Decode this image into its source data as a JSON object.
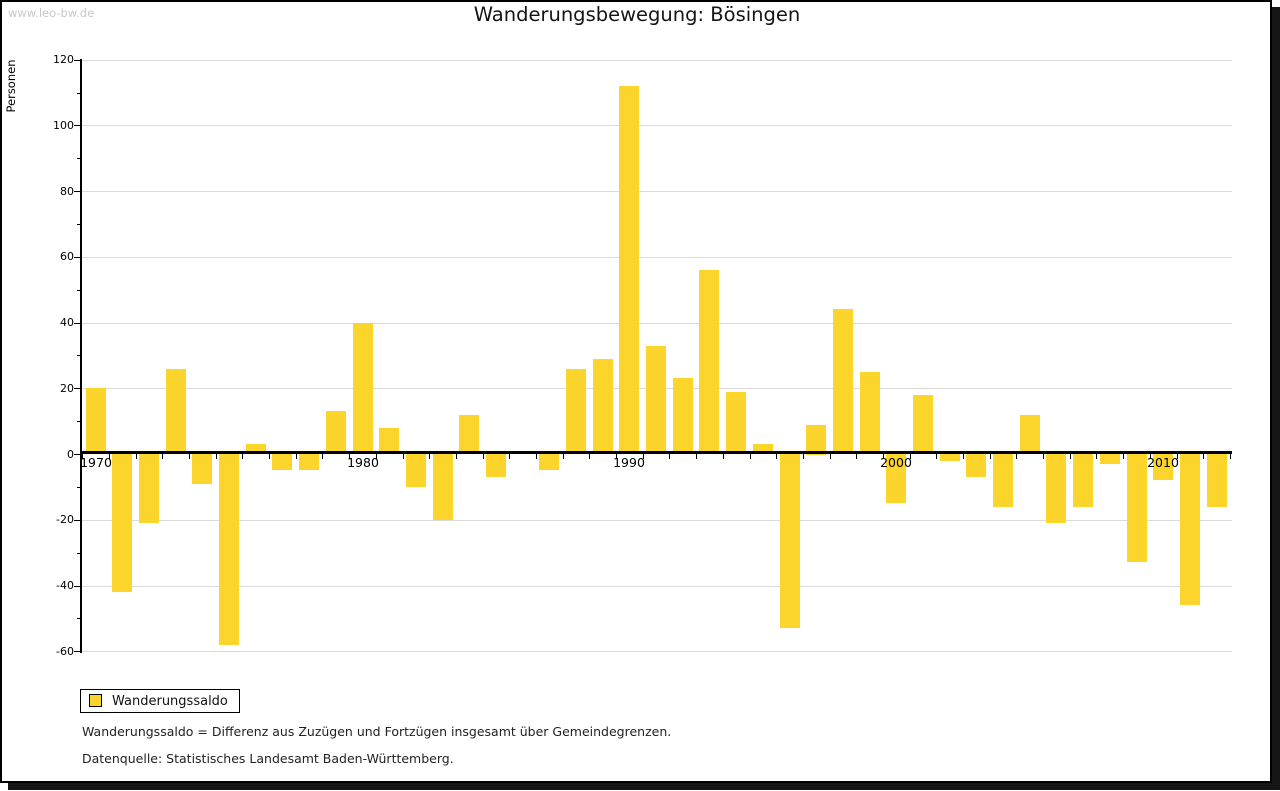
{
  "watermark": "www.leo-bw.de",
  "title": "Wanderungsbewegung: Bösingen",
  "y_axis": {
    "label": "Personen",
    "tick_labels": [
      "120",
      "100",
      "80",
      "60",
      "40",
      "20",
      "0",
      "-20",
      "-40",
      "-60"
    ]
  },
  "x_axis": {
    "tick_labels": [
      "1970",
      "1980",
      "1990",
      "2000",
      "2010"
    ]
  },
  "legend": {
    "label": "Wanderungssaldo"
  },
  "footnotes": [
    "Wanderungssaldo = Differenz aus Zuzügen und Fortzügen insgesamt über Gemeindegrenzen.",
    "Datenquelle: Statistisches Landesamt Baden-Württemberg."
  ],
  "colors": {
    "bar": "#FCD52C",
    "gridline": "#DBDBDB",
    "axis": "#000000",
    "watermark": "#C8C8C8"
  },
  "chart_data": {
    "type": "bar",
    "title": "Wanderungsbewegung: Bösingen",
    "xlabel": "",
    "ylabel": "Personen",
    "ylim": [
      -60,
      120
    ],
    "y_tick_step": 20,
    "grid": true,
    "legend_position": "bottom-left",
    "series": [
      {
        "name": "Wanderungssaldo",
        "x": [
          1970,
          1971,
          1972,
          1973,
          1974,
          1975,
          1976,
          1977,
          1978,
          1979,
          1980,
          1981,
          1982,
          1983,
          1984,
          1985,
          1986,
          1987,
          1988,
          1989,
          1990,
          1991,
          1992,
          1993,
          1994,
          1995,
          1996,
          1997,
          1998,
          1999,
          2000,
          2001,
          2002,
          2003,
          2004,
          2005,
          2006,
          2007,
          2008,
          2009,
          2010,
          2011,
          2012
        ],
        "values": [
          20,
          -42,
          -21,
          26,
          -9,
          -58,
          3,
          -5,
          -5,
          13,
          40,
          8,
          -10,
          -20,
          12,
          -7,
          0,
          -5,
          26,
          29,
          112,
          33,
          23,
          56,
          19,
          3,
          -53,
          9,
          44,
          25,
          -15,
          18,
          -2,
          -7,
          -16,
          12,
          -21,
          -16,
          -3,
          -33,
          -8,
          -46,
          -16
        ]
      }
    ]
  }
}
